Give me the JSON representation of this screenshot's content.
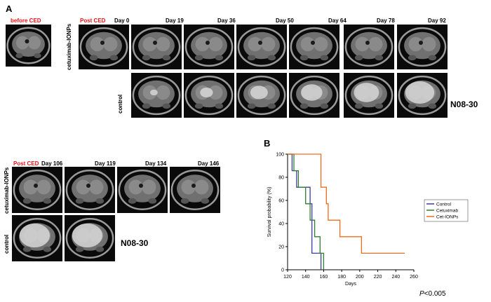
{
  "panel_a": {
    "letter": "A",
    "before_label": "before CED",
    "post_label": "Post CED",
    "row_labels": {
      "treated": "cetuximab-IONPs",
      "control": "control"
    },
    "top_days": [
      "Day 0",
      "Day 19",
      "Day 36",
      "Day 50",
      "Day 64",
      "Day 78",
      "Day 92"
    ],
    "bottom_days": [
      "Day 106",
      "Day 119",
      "Day 134",
      "Day 146"
    ],
    "sample_id": "N08-30"
  },
  "panel_b": {
    "letter": "B",
    "p_value": "P<0.005"
  },
  "chart_data": {
    "type": "line",
    "title": "",
    "xlabel": "Days",
    "ylabel": "Survival probability (%)",
    "xlim": [
      120,
      260
    ],
    "ylim": [
      0,
      100
    ],
    "x_ticks": [
      120,
      140,
      160,
      180,
      200,
      220,
      240,
      260
    ],
    "y_ticks": [
      0,
      20,
      40,
      60,
      80,
      100
    ],
    "legend_position": "right",
    "series": [
      {
        "name": "Control",
        "color": "#3d3d9e",
        "points": [
          [
            120,
            100
          ],
          [
            125,
            100
          ],
          [
            125,
            85.7
          ],
          [
            130,
            85.7
          ],
          [
            130,
            71.4
          ],
          [
            145,
            71.4
          ],
          [
            145,
            57.1
          ],
          [
            147,
            57.1
          ],
          [
            147,
            42.9
          ],
          [
            147,
            14.3
          ],
          [
            157,
            14.3
          ],
          [
            157,
            0
          ]
        ]
      },
      {
        "name": "Cetuximab",
        "color": "#2e7d32",
        "points": [
          [
            120,
            100
          ],
          [
            127,
            100
          ],
          [
            127,
            85.7
          ],
          [
            132,
            85.7
          ],
          [
            132,
            71.4
          ],
          [
            140,
            71.4
          ],
          [
            140,
            57.1
          ],
          [
            145,
            57.1
          ],
          [
            145,
            42.9
          ],
          [
            150,
            42.9
          ],
          [
            150,
            28.6
          ],
          [
            156,
            28.6
          ],
          [
            156,
            14.3
          ],
          [
            160,
            14.3
          ],
          [
            160,
            0
          ]
        ]
      },
      {
        "name": "Cet-IONPs",
        "color": "#ef6c1a",
        "points": [
          [
            120,
            100
          ],
          [
            157,
            100
          ],
          [
            157,
            71.4
          ],
          [
            163,
            71.4
          ],
          [
            163,
            57.1
          ],
          [
            165,
            57.1
          ],
          [
            165,
            42.9
          ],
          [
            178,
            42.9
          ],
          [
            178,
            28.6
          ],
          [
            202,
            28.6
          ],
          [
            202,
            14.3
          ],
          [
            250,
            14.3
          ]
        ]
      }
    ]
  }
}
